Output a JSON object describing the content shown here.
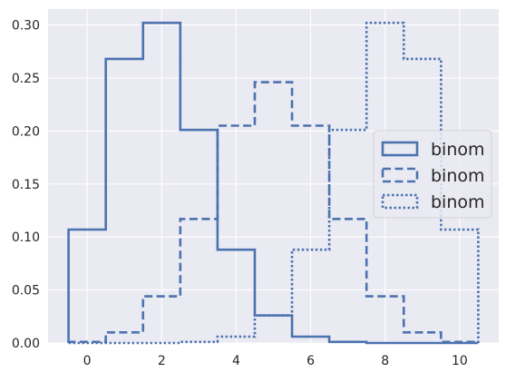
{
  "chart_data": {
    "type": "histogram-step",
    "title": "",
    "xlabel": "",
    "ylabel": "",
    "xlim": [
      -1.05,
      11.05
    ],
    "ylim": [
      0,
      0.315
    ],
    "xticks": [
      0,
      2,
      4,
      6,
      8,
      10
    ],
    "yticks": [
      0.0,
      0.05,
      0.1,
      0.15,
      0.2,
      0.25,
      0.3
    ],
    "xtick_labels": [
      "0",
      "2",
      "4",
      "6",
      "8",
      "10"
    ],
    "ytick_labels": [
      "0.00",
      "0.05",
      "0.10",
      "0.15",
      "0.20",
      "0.25",
      "0.30"
    ],
    "bin_edges": [
      -0.5,
      0.5,
      1.5,
      2.5,
      3.5,
      4.5,
      5.5,
      6.5,
      7.5,
      8.5,
      9.5,
      10.5
    ],
    "grid": true,
    "legend_position": "center-right",
    "series": [
      {
        "name": "binom",
        "linestyle": "solid",
        "values": [
          0.107,
          0.268,
          0.302,
          0.201,
          0.088,
          0.026,
          0.006,
          0.001,
          0.0,
          0.0,
          0.0
        ]
      },
      {
        "name": "binom",
        "linestyle": "dashed",
        "values": [
          0.001,
          0.01,
          0.044,
          0.117,
          0.205,
          0.246,
          0.205,
          0.117,
          0.044,
          0.01,
          0.001
        ]
      },
      {
        "name": "binom",
        "linestyle": "dotted",
        "values": [
          0.0,
          0.0,
          0.0,
          0.001,
          0.006,
          0.026,
          0.088,
          0.201,
          0.302,
          0.268,
          0.107
        ]
      }
    ],
    "colors": {
      "line": "#4c72b0",
      "axes_bg": "#eaeaf2",
      "grid": "#ffffff",
      "legend_bg": "#eaeaf2"
    }
  }
}
